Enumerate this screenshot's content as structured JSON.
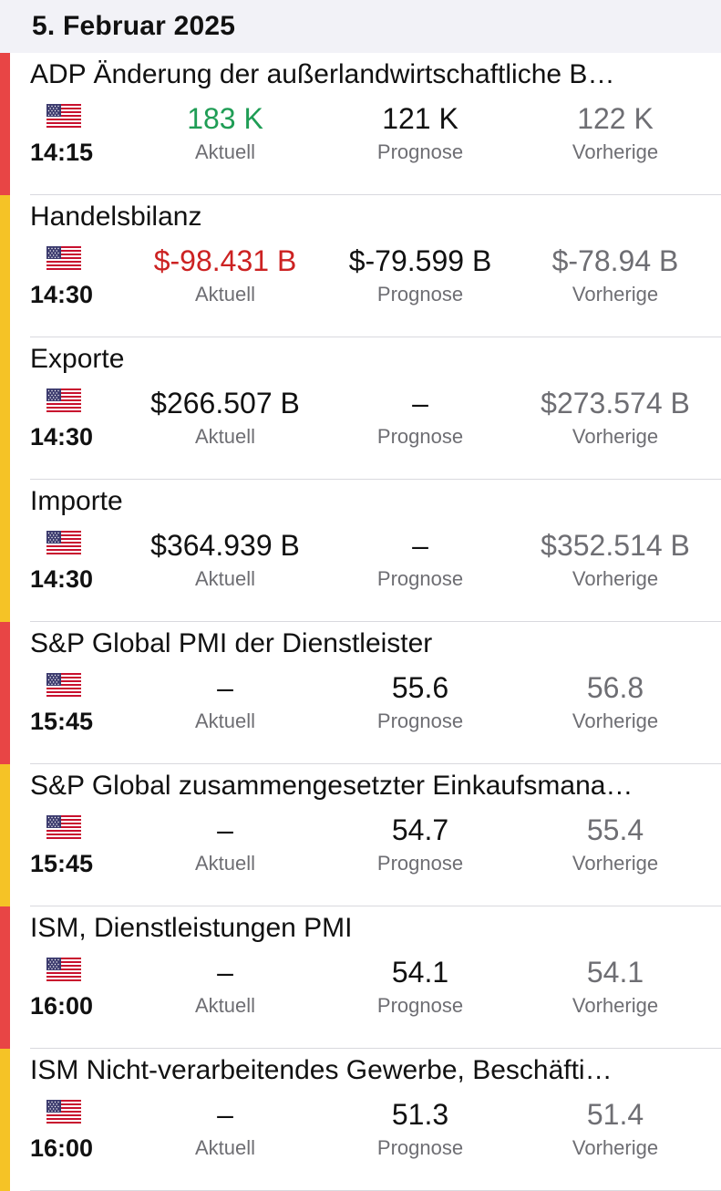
{
  "header": {
    "date": "5. Februar 2025"
  },
  "colors": {
    "impact_high": "#e84545",
    "impact_medium": "#f5c326",
    "positive": "#1f9d55",
    "negative": "#cc2222",
    "neutral": "#111111",
    "previous": "#6e6e73"
  },
  "labels": {
    "actual": "Aktuell",
    "forecast": "Prognose",
    "previous": "Vorherige"
  },
  "events": [
    {
      "title": "ADP Änderung der außerlandwirtschaftliche B…",
      "time": "14:15",
      "country_icon": "us-flag-icon",
      "impact": "high",
      "actual": "183 K",
      "actual_tone": "positive",
      "forecast": "121 K",
      "previous": "122 K"
    },
    {
      "title": "Handelsbilanz",
      "time": "14:30",
      "country_icon": "us-flag-icon",
      "impact": "medium",
      "actual": "$-98.431 B",
      "actual_tone": "negative",
      "forecast": "$-79.599 B",
      "previous": "$-78.94 B"
    },
    {
      "title": "Exporte",
      "time": "14:30",
      "country_icon": "us-flag-icon",
      "impact": "medium",
      "actual": "$266.507 B",
      "actual_tone": "neutral",
      "forecast": "–",
      "previous": "$273.574 B"
    },
    {
      "title": "Importe",
      "time": "14:30",
      "country_icon": "us-flag-icon",
      "impact": "medium",
      "actual": "$364.939 B",
      "actual_tone": "neutral",
      "forecast": "–",
      "previous": "$352.514 B"
    },
    {
      "title": "S&P Global PMI der Dienstleister",
      "time": "15:45",
      "country_icon": "us-flag-icon",
      "impact": "high",
      "actual": "–",
      "actual_tone": "neutral",
      "forecast": "55.6",
      "previous": "56.8"
    },
    {
      "title": "S&P Global zusammengesetzter Einkaufsmana…",
      "time": "15:45",
      "country_icon": "us-flag-icon",
      "impact": "medium",
      "actual": "–",
      "actual_tone": "neutral",
      "forecast": "54.7",
      "previous": "55.4"
    },
    {
      "title": "ISM, Dienstleistungen PMI",
      "time": "16:00",
      "country_icon": "us-flag-icon",
      "impact": "high",
      "actual": "–",
      "actual_tone": "neutral",
      "forecast": "54.1",
      "previous": "54.1"
    },
    {
      "title": "ISM Nicht-verarbeitendes Gewerbe, Beschäfti…",
      "time": "16:00",
      "country_icon": "us-flag-icon",
      "impact": "medium",
      "actual": "–",
      "actual_tone": "neutral",
      "forecast": "51.3",
      "previous": "51.4"
    }
  ]
}
